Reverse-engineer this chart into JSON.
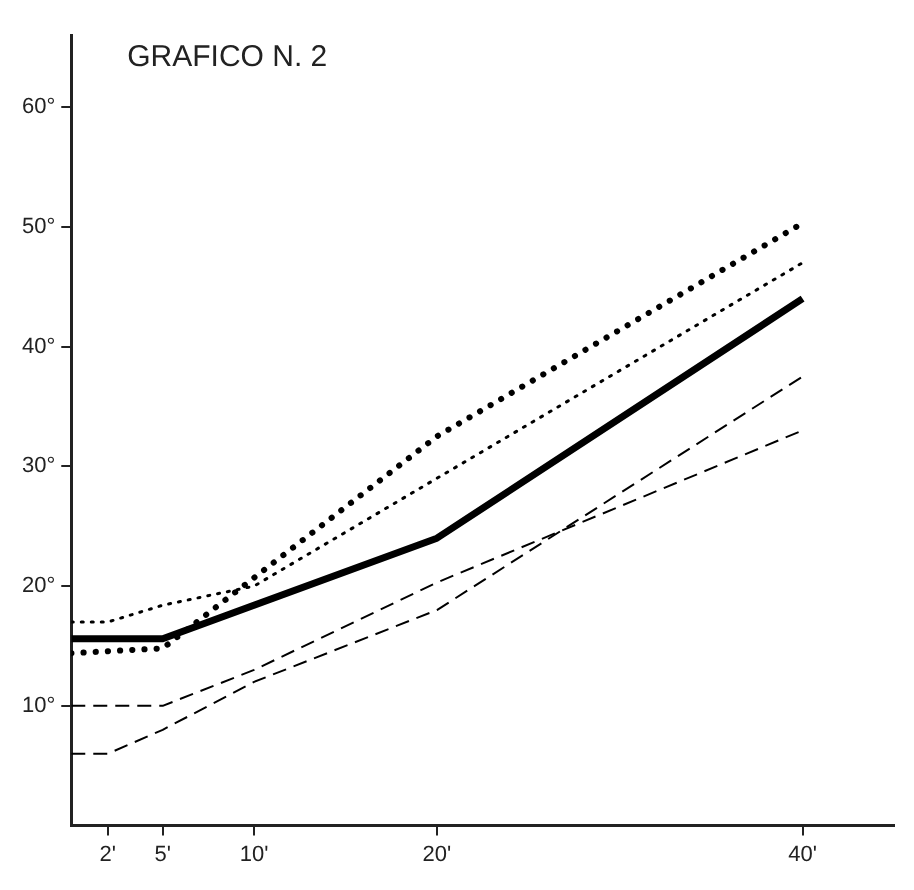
{
  "chart_data": {
    "type": "line",
    "title": "GRAFICO N. 2",
    "xlim": [
      0,
      45
    ],
    "ylim": [
      0,
      66
    ],
    "xticks": [
      {
        "value": 2,
        "label": "2'"
      },
      {
        "value": 5,
        "label": "5'"
      },
      {
        "value": 10,
        "label": "10'"
      },
      {
        "value": 20,
        "label": "20'"
      },
      {
        "value": 40,
        "label": "40'"
      }
    ],
    "yticks": [
      {
        "value": 10,
        "label": "10°"
      },
      {
        "value": 20,
        "label": "20°"
      },
      {
        "value": 30,
        "label": "30°"
      },
      {
        "value": 40,
        "label": "40°"
      },
      {
        "value": 50,
        "label": "50°"
      },
      {
        "value": 60,
        "label": "60°"
      }
    ],
    "grid": false,
    "legend": false,
    "marker": "none",
    "series": [
      {
        "color": "#000000",
        "line_style": "solid",
        "x": [
          0,
          5,
          20,
          40
        ],
        "values": [
          15.6,
          15.6,
          24,
          44
        ]
      },
      {
        "color": "#000000",
        "line_style": "dotted",
        "x": [
          0,
          5,
          20,
          40
        ],
        "values": [
          14.4,
          14.8,
          32.5,
          50.3
        ]
      },
      {
        "color": "#000000",
        "line_style": "dotted",
        "x": [
          0,
          2,
          5,
          10,
          40
        ],
        "values": [
          17,
          17,
          18.4,
          20,
          47
        ]
      },
      {
        "color": "#000000",
        "line_style": "dashed",
        "x": [
          0,
          2,
          5,
          10,
          20,
          40
        ],
        "values": [
          6,
          6,
          8,
          12,
          18,
          37.5
        ]
      },
      {
        "color": "#000000",
        "line_style": "dashed",
        "x": [
          0,
          5,
          10,
          20,
          40
        ],
        "values": [
          10,
          10,
          13,
          20.3,
          33
        ]
      }
    ]
  }
}
